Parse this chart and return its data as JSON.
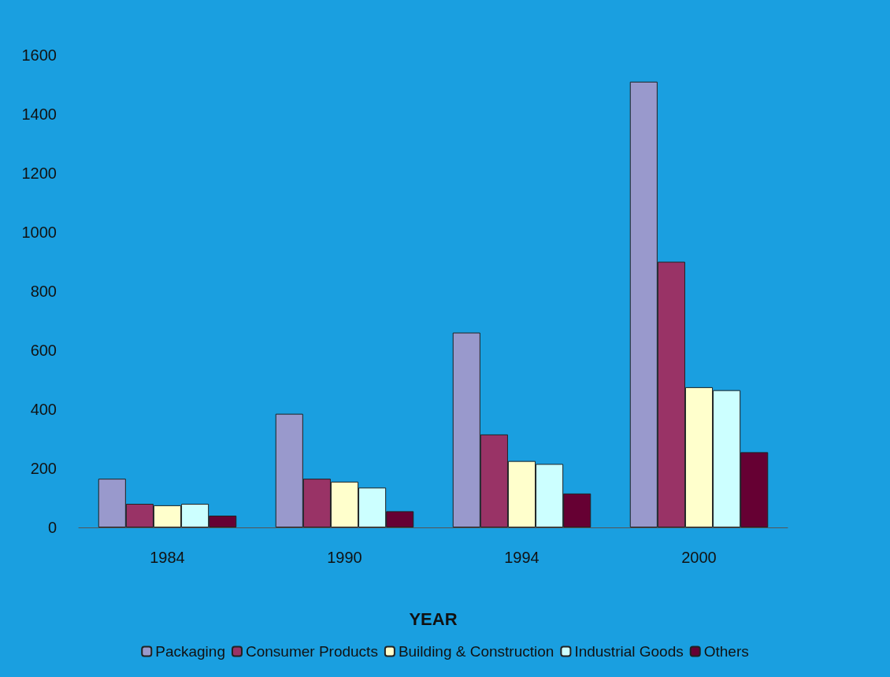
{
  "chart_data": {
    "type": "bar",
    "xlabel": "YEAR",
    "categories": [
      "1984",
      "1990",
      "1994",
      "2000"
    ],
    "series": [
      {
        "name": "Packaging",
        "color": "#9999cc",
        "values": [
          165,
          385,
          660,
          1510
        ]
      },
      {
        "name": "Consumer Products",
        "color": "#993366",
        "values": [
          80,
          165,
          315,
          900
        ]
      },
      {
        "name": "Building & Construction",
        "color": "#ffffcc",
        "values": [
          75,
          155,
          225,
          475
        ]
      },
      {
        "name": "Industrial Goods",
        "color": "#ccffff",
        "values": [
          80,
          135,
          215,
          465
        ]
      },
      {
        "name": "Others",
        "color": "#660033",
        "values": [
          40,
          55,
          115,
          255
        ]
      }
    ],
    "ylim": [
      0,
      1600
    ],
    "yticks": [
      0,
      200,
      400,
      600,
      800,
      1000,
      1200,
      1400,
      1600
    ],
    "grid": false,
    "legend": "bottom"
  }
}
